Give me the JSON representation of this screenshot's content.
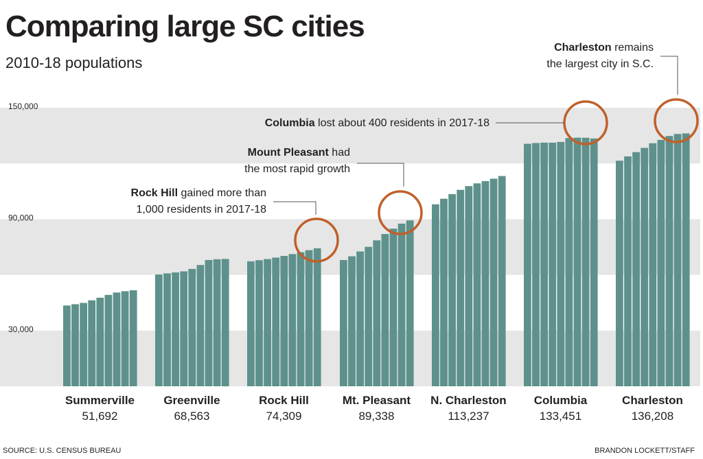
{
  "header": {
    "title": "Comparing large SC cities",
    "subtitle": "2010-18 populations"
  },
  "footer": {
    "source": "SOURCE: U.S. CENSUS BUREAU",
    "credit": "BRANDON LOCKETT/STAFF"
  },
  "colors": {
    "bar": "#5e918b",
    "band": "#e6e6e6",
    "circle": "#c0602b",
    "text": "#231f20"
  },
  "chart_data": {
    "type": "bar",
    "title": "Comparing large SC cities",
    "subtitle": "2010-18 populations",
    "xlabel": "",
    "ylabel": "",
    "ylim": [
      0,
      160000
    ],
    "yticks": [
      30000,
      90000,
      150000
    ],
    "ytick_labels": [
      "30,000",
      "90,000",
      "150,000"
    ],
    "x": [
      "2010",
      "2011",
      "2012",
      "2013",
      "2014",
      "2015",
      "2016",
      "2017",
      "2018"
    ],
    "series": [
      {
        "name": "Summerville",
        "label": "51,692",
        "values": [
          43500,
          44200,
          44900,
          46300,
          47700,
          49200,
          50500,
          51200,
          51692
        ]
      },
      {
        "name": "Greenville",
        "label": "68,563",
        "values": [
          60200,
          60800,
          61300,
          61900,
          63200,
          65300,
          68000,
          68400,
          68563
        ]
      },
      {
        "name": "Rock Hill",
        "label": "74,309",
        "values": [
          67300,
          67900,
          68500,
          69300,
          70200,
          71200,
          72200,
          73300,
          74309
        ]
      },
      {
        "name": "Mt. Pleasant",
        "label": "89,338",
        "values": [
          68000,
          70000,
          72600,
          75100,
          78600,
          82000,
          84900,
          87600,
          89338
        ]
      },
      {
        "name": "N. Charleston",
        "label": "113,237",
        "values": [
          98000,
          101000,
          103500,
          105800,
          107800,
          109300,
          110500,
          111800,
          113237
        ]
      },
      {
        "name": "Columbia",
        "label": "133,451",
        "values": [
          130600,
          131000,
          131200,
          131200,
          131600,
          133700,
          133900,
          133851,
          133451
        ]
      },
      {
        "name": "Charleston",
        "label": "136,208",
        "values": [
          121500,
          123800,
          126100,
          128400,
          130900,
          132700,
          134800,
          135900,
          136208
        ]
      }
    ],
    "annotations": [
      {
        "bold": "Charleston",
        "text": " remains",
        "line2": "the largest city in S.C."
      },
      {
        "bold": "Columbia",
        "text": " lost about 400 residents in 2017-18",
        "line2": ""
      },
      {
        "bold": "Mount Pleasant",
        "text": " had",
        "line2": "the most rapid growth"
      },
      {
        "bold": "Rock Hill",
        "text": " gained more than",
        "line2": "1,000 residents in 2017-18"
      }
    ]
  }
}
